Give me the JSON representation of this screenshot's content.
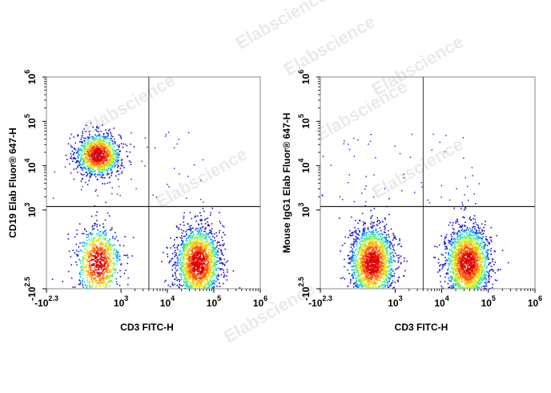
{
  "watermark": "Elabscience",
  "chart_data": [
    {
      "type": "scatter",
      "plot": "left",
      "xlabel": "CD3 FITC-H",
      "ylabel": "CD19 Elab Fluor® 647-H",
      "x_scale": "biexponential",
      "y_scale": "biexponential",
      "xlim": [
        -200,
        1000000
      ],
      "ylim": [
        -316,
        1000000
      ],
      "x_ticks": [
        {
          "base": "-10",
          "exp": "2.3",
          "value": -200
        },
        {
          "base": "10",
          "exp": "3",
          "value": 1000
        },
        {
          "base": "10",
          "exp": "4",
          "value": 10000
        },
        {
          "base": "10",
          "exp": "5",
          "value": 100000
        },
        {
          "base": "10",
          "exp": "6",
          "value": 1000000
        }
      ],
      "y_ticks": [
        {
          "base": "-10",
          "exp": "2.5",
          "value": -316
        },
        {
          "base": "10",
          "exp": "3",
          "value": 1000
        },
        {
          "base": "10",
          "exp": "4",
          "value": 10000
        },
        {
          "base": "10",
          "exp": "5",
          "value": 100000
        },
        {
          "base": "10",
          "exp": "6",
          "value": 1000000
        }
      ],
      "gate": {
        "x": 4000,
        "y": 1200
      },
      "populations": [
        {
          "name": "CD3-CD19+",
          "x_center": 300,
          "y_center": 18000,
          "count": 1200
        },
        {
          "name": "CD3-CD19-",
          "x_center": 300,
          "y_center": -20,
          "count": 900
        },
        {
          "name": "CD3+CD19-",
          "x_center": 45000,
          "y_center": -20,
          "count": 1900
        }
      ],
      "grid": false,
      "legend": "none"
    },
    {
      "type": "scatter",
      "plot": "right",
      "xlabel": "CD3 FITC-H",
      "ylabel": "Mouse IgG1 Elab Fluor® 647-H",
      "x_scale": "biexponential",
      "y_scale": "biexponential",
      "xlim": [
        -200,
        1000000
      ],
      "ylim": [
        -316,
        1000000
      ],
      "x_ticks": [
        {
          "base": "-10",
          "exp": "2.3",
          "value": -200
        },
        {
          "base": "10",
          "exp": "3",
          "value": 1000
        },
        {
          "base": "10",
          "exp": "4",
          "value": 10000
        },
        {
          "base": "10",
          "exp": "5",
          "value": 100000
        },
        {
          "base": "10",
          "exp": "6",
          "value": 1000000
        }
      ],
      "y_ticks": [
        {
          "base": "-10",
          "exp": "2.5",
          "value": -316
        },
        {
          "base": "10",
          "exp": "3",
          "value": 1000
        },
        {
          "base": "10",
          "exp": "4",
          "value": 10000
        },
        {
          "base": "10",
          "exp": "5",
          "value": 100000
        },
        {
          "base": "10",
          "exp": "6",
          "value": 1000000
        }
      ],
      "gate": {
        "x": 4000,
        "y": 1200
      },
      "populations": [
        {
          "name": "CD3-",
          "x_center": 300,
          "y_center": -20,
          "count": 1800
        },
        {
          "name": "CD3+",
          "x_center": 35000,
          "y_center": -20,
          "count": 1900
        }
      ],
      "grid": false,
      "legend": "none"
    }
  ]
}
